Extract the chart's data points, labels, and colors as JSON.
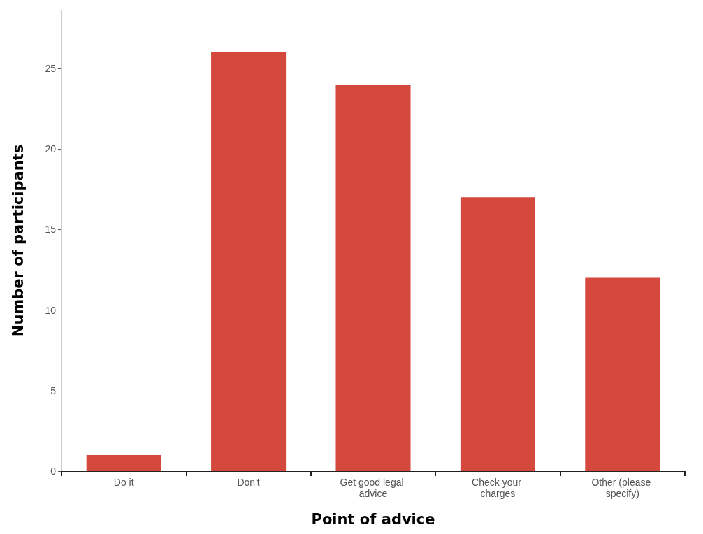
{
  "chart_data": {
    "type": "bar",
    "xlabel": "Point of advice",
    "ylabel": "Number of participants",
    "categories": [
      "Do it",
      "Don't",
      "Get good legal advice",
      "Check your charges",
      "Other (please specify)"
    ],
    "values": [
      1,
      26,
      24,
      17,
      12
    ],
    "color": "#d4483d",
    "ylim": [
      0,
      28.6
    ],
    "yticks": [
      0,
      5,
      10,
      15,
      20,
      25
    ],
    "grid": false
  }
}
